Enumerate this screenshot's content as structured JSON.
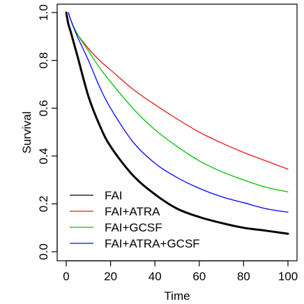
{
  "chart_data": {
    "type": "line",
    "title": "",
    "xlabel": "Time",
    "ylabel": "Survival",
    "xlim": [
      0,
      100
    ],
    "ylim": [
      0,
      1
    ],
    "x_ticks": [
      0,
      20,
      40,
      60,
      80,
      100
    ],
    "x_tick_labels": [
      "0",
      "20",
      "40",
      "60",
      "80",
      "100"
    ],
    "y_ticks": [
      0,
      0.2,
      0.4,
      0.6,
      0.8,
      1.0
    ],
    "y_tick_labels": [
      "0.0",
      "0.2",
      "0.4",
      "0.6",
      "0.8",
      "1.0"
    ],
    "grid": false,
    "legend_position": "bottom-left",
    "x": [
      0,
      2,
      5,
      10,
      15,
      20,
      30,
      40,
      50,
      60,
      70,
      80,
      90,
      100
    ],
    "series": [
      {
        "name": "FAI",
        "color": "#000000",
        "x": [
          0,
          1,
          2,
          5,
          10,
          15,
          20,
          30,
          40,
          50,
          60,
          70,
          80,
          90,
          100
        ],
        "values": [
          1.0,
          0.95,
          0.92,
          0.82,
          0.65,
          0.53,
          0.44,
          0.32,
          0.24,
          0.18,
          0.145,
          0.12,
          0.1,
          0.088,
          0.075
        ]
      },
      {
        "name": "FAI+ATRA",
        "color": "#e41a1c",
        "x": [
          1,
          2,
          5,
          10,
          15,
          20,
          30,
          40,
          50,
          60,
          70,
          80,
          90,
          100
        ],
        "values": [
          1.0,
          0.97,
          0.91,
          0.85,
          0.8,
          0.76,
          0.68,
          0.615,
          0.555,
          0.5,
          0.455,
          0.415,
          0.38,
          0.345
        ]
      },
      {
        "name": "FAI+GCSF",
        "color": "#00c000",
        "x": [
          1,
          2,
          5,
          10,
          15,
          20,
          30,
          40,
          50,
          60,
          70,
          80,
          90,
          100
        ],
        "values": [
          1.0,
          0.97,
          0.91,
          0.84,
          0.77,
          0.71,
          0.6,
          0.51,
          0.44,
          0.38,
          0.335,
          0.3,
          0.27,
          0.25
        ]
      },
      {
        "name": "FAI+ATRA+GCSF",
        "color": "#0000ff",
        "x": [
          1,
          2,
          5,
          10,
          15,
          20,
          30,
          40,
          50,
          60,
          70,
          80,
          90,
          100
        ],
        "values": [
          1.0,
          0.97,
          0.9,
          0.8,
          0.69,
          0.6,
          0.46,
          0.37,
          0.31,
          0.265,
          0.23,
          0.205,
          0.18,
          0.165
        ]
      }
    ]
  }
}
